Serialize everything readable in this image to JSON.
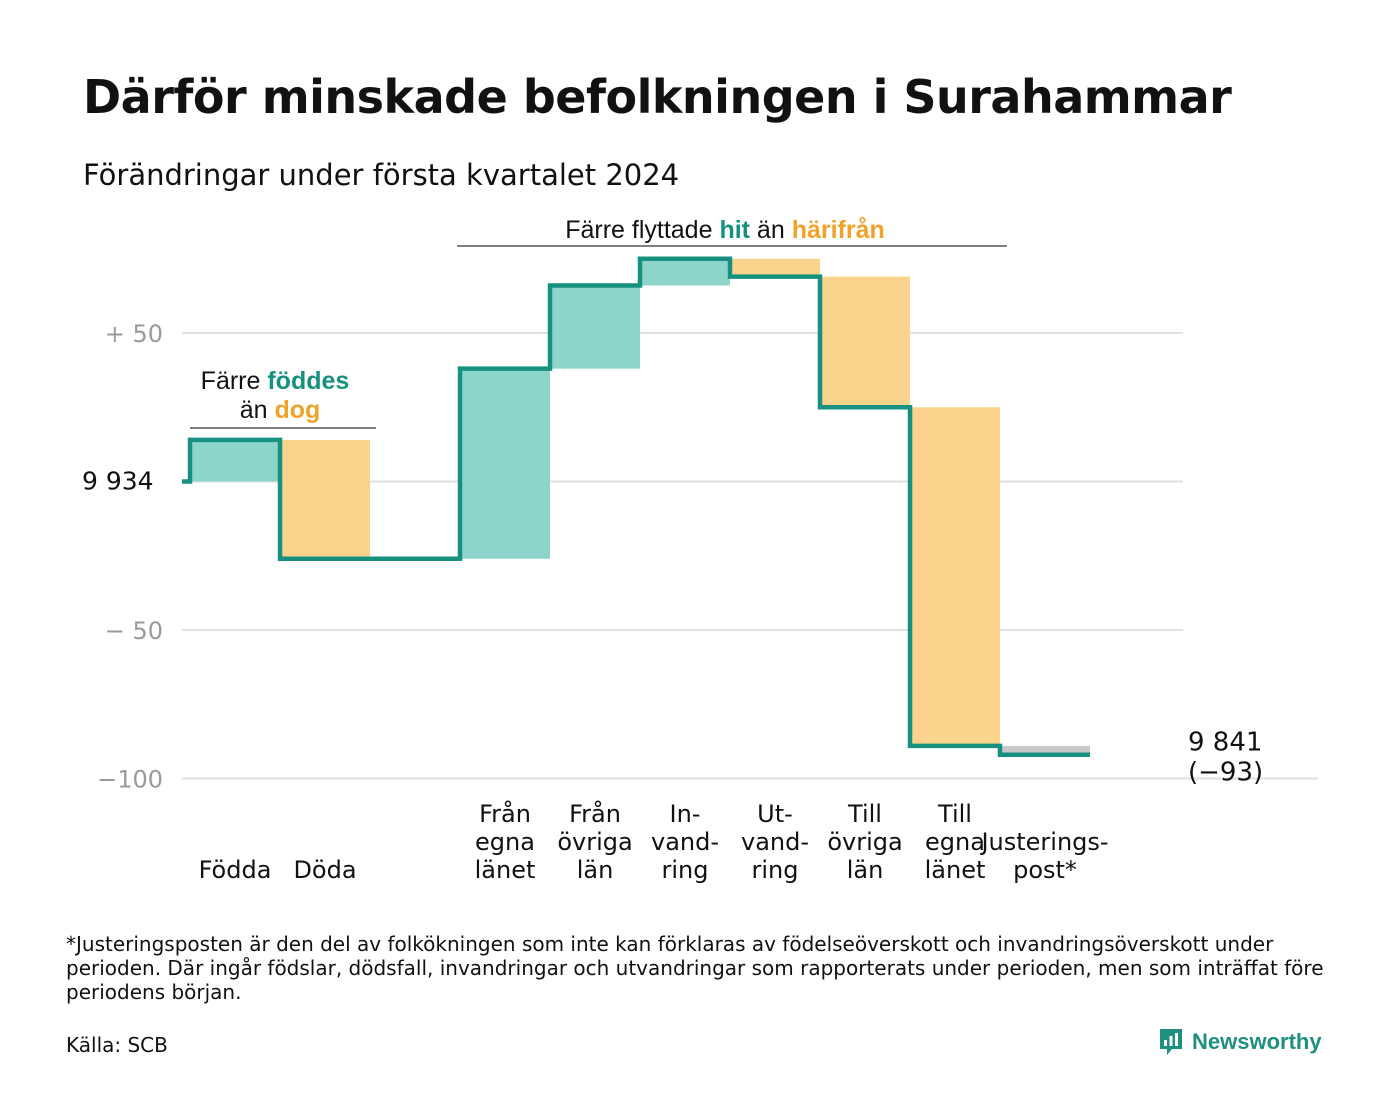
{
  "title": "Därför minskade befolkningen i Surahammar",
  "subtitle": "Förändringar under första kvartalet 2024",
  "colors": {
    "increase": "#8dd5cb",
    "decrease": "#fad38c",
    "adjustment": "#c8c8c8",
    "line": "#17917f",
    "teal_text": "#17917f",
    "orange_text": "#f0a32a",
    "grid": "#e0e0e0",
    "tick_text": "#9a9a9a"
  },
  "annotations": {
    "births_deaths": {
      "line1": "Färre",
      "hl1": "föddes",
      "line2": "än",
      "hl2": "dog"
    },
    "migration": {
      "pre": "Färre flyttade",
      "hl1": "hit",
      "mid": "än",
      "hl2": "härifrån"
    }
  },
  "chart_data": {
    "type": "waterfall",
    "start_value": 9934,
    "start_label": "9  934",
    "y_ticks": [
      {
        "value": 50,
        "label": "+  50"
      },
      {
        "value": 0,
        "label": ""
      },
      {
        "value": -50,
        "label": "−  50"
      },
      {
        "value": -100,
        "label": "−100"
      }
    ],
    "ylim": [
      -100,
      75
    ],
    "items": [
      {
        "label": [
          "Födda"
        ],
        "delta": 14,
        "kind": "increase"
      },
      {
        "label": [
          "Döda"
        ],
        "delta": -40,
        "kind": "decrease"
      },
      {
        "label": [],
        "delta": 0,
        "kind": "spacer"
      },
      {
        "label": [
          "Från",
          "egna",
          "länet"
        ],
        "delta": 64,
        "kind": "increase"
      },
      {
        "label": [
          "Från",
          "övriga",
          "län"
        ],
        "delta": 28,
        "kind": "increase"
      },
      {
        "label": [
          "In-",
          "vand-",
          "ring"
        ],
        "delta": 9,
        "kind": "increase"
      },
      {
        "label": [
          "Ut-",
          "vand-",
          "ring"
        ],
        "delta": -6,
        "kind": "decrease"
      },
      {
        "label": [
          "Till",
          "övriga",
          "län"
        ],
        "delta": -44,
        "kind": "decrease"
      },
      {
        "label": [
          "Till",
          "egna",
          "länet"
        ],
        "delta": -114,
        "kind": "decrease"
      },
      {
        "label": [
          "Justerings-",
          "post*"
        ],
        "delta": -3,
        "kind": "adjustment"
      }
    ],
    "end_value": "9 841",
    "end_change": "(−93)"
  },
  "footnote": "*Justeringsposten är den del av folkökningen som inte kan förklaras av födelseöverskott och invandringsöverskott under perioden. Där ingår födslar, dödsfall, invandringar och utvandringar som rapporterats under perioden, men som inträffat före periodens början.",
  "source": "Källa: SCB",
  "logo": {
    "text": "Newsworthy",
    "icon": "bar-chart-speech-bubble-icon"
  }
}
